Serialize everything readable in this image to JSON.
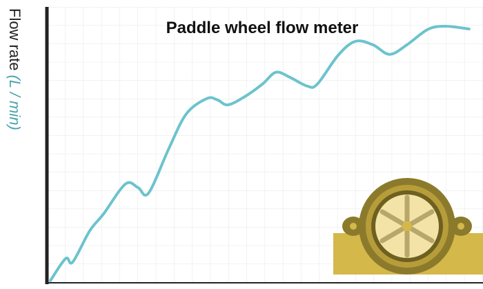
{
  "chart_data": {
    "type": "line",
    "title": "Paddle wheel flow meter",
    "y_label": "Flow rate",
    "y_unit": "(L / min)",
    "x": [
      0.8,
      4.3,
      5.9,
      9.8,
      13,
      18,
      20.9,
      23.3,
      28,
      32,
      36.7,
      39.1,
      41.5,
      45.4,
      49.4,
      52.5,
      55.7,
      59.7,
      62,
      66.8,
      70.7,
      74.7,
      78.6,
      82.6,
      87.3,
      91.3,
      96.8
    ],
    "series": [
      {
        "color": "#6cc3cd",
        "values": [
          0.8,
          8.8,
          7.5,
          18.8,
          25,
          35.8,
          34.5,
          32.5,
          48.8,
          61.3,
          66.8,
          66.3,
          64.5,
          67.5,
          72,
          76.3,
          74.5,
          71.3,
          72,
          82.5,
          87.5,
          86.3,
          82.8,
          86.3,
          91.8,
          93,
          92
        ]
      }
    ],
    "xlim": [
      0,
      100
    ],
    "ylim": [
      0,
      100
    ]
  }
}
